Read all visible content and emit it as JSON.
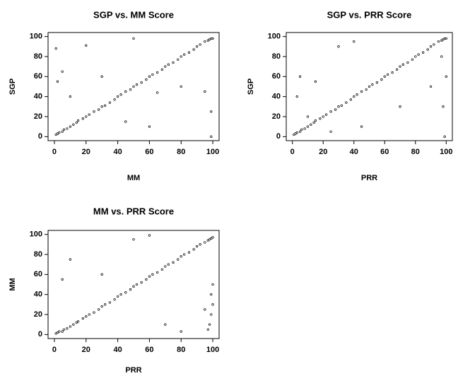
{
  "chart_data": [
    {
      "type": "scatter",
      "title": "SGP vs. MM Score",
      "xlabel": "MM",
      "ylabel": "SGP",
      "x": [
        1,
        2,
        3,
        5,
        6,
        8,
        10,
        12,
        14,
        15,
        18,
        20,
        22,
        25,
        28,
        30,
        32,
        35,
        38,
        40,
        42,
        45,
        48,
        50,
        52,
        55,
        58,
        60,
        62,
        65,
        68,
        70,
        72,
        75,
        78,
        80,
        82,
        85,
        88,
        90,
        92,
        95,
        97,
        98,
        99,
        100,
        1,
        2,
        20,
        50,
        65,
        80,
        99,
        99,
        30,
        45,
        10,
        5,
        95,
        60
      ],
      "values": [
        2,
        3,
        4,
        5,
        7,
        8,
        10,
        12,
        14,
        16,
        18,
        20,
        22,
        25,
        27,
        30,
        31,
        34,
        37,
        40,
        42,
        45,
        47,
        50,
        52,
        54,
        57,
        60,
        62,
        64,
        67,
        70,
        72,
        74,
        77,
        80,
        82,
        84,
        87,
        90,
        92,
        95,
        96,
        97,
        98,
        98,
        88,
        55,
        91,
        98,
        44,
        50,
        25,
        0,
        60,
        15,
        40,
        65,
        45,
        10
      ],
      "xlim": [
        -4,
        104
      ],
      "ylim": [
        -4,
        104
      ],
      "xticks": [
        0,
        20,
        40,
        60,
        80,
        100
      ],
      "yticks": [
        0,
        20,
        40,
        60,
        80,
        100
      ],
      "color": "#000000"
    },
    {
      "type": "scatter",
      "title": "SGP vs. PRR Score",
      "xlabel": "PRR",
      "ylabel": "SGP",
      "x": [
        1,
        2,
        3,
        5,
        6,
        8,
        10,
        12,
        14,
        15,
        18,
        20,
        22,
        25,
        28,
        30,
        32,
        35,
        38,
        40,
        42,
        45,
        48,
        50,
        52,
        55,
        58,
        60,
        62,
        65,
        68,
        70,
        72,
        75,
        78,
        80,
        82,
        85,
        88,
        90,
        92,
        95,
        97,
        98,
        99,
        100,
        5,
        10,
        30,
        45,
        90,
        98,
        99,
        100,
        15,
        40,
        70,
        3,
        97,
        25
      ],
      "values": [
        2,
        3,
        4,
        5,
        7,
        8,
        10,
        12,
        14,
        16,
        18,
        20,
        22,
        25,
        27,
        30,
        31,
        34,
        37,
        40,
        42,
        45,
        47,
        50,
        52,
        54,
        57,
        60,
        62,
        64,
        67,
        70,
        72,
        74,
        77,
        80,
        82,
        84,
        87,
        90,
        92,
        95,
        96,
        97,
        98,
        98,
        60,
        20,
        90,
        10,
        50,
        30,
        0,
        60,
        55,
        95,
        30,
        40,
        80,
        5
      ],
      "xlim": [
        -4,
        104
      ],
      "ylim": [
        -4,
        104
      ],
      "xticks": [
        0,
        20,
        40,
        60,
        80,
        100
      ],
      "yticks": [
        0,
        20,
        40,
        60,
        80,
        100
      ],
      "color": "#000000"
    },
    {
      "type": "scatter",
      "title": "MM vs. PRR Score",
      "xlabel": "PRR",
      "ylabel": "MM",
      "x": [
        1,
        2,
        3,
        5,
        6,
        8,
        10,
        12,
        14,
        15,
        18,
        20,
        22,
        25,
        28,
        30,
        32,
        35,
        38,
        40,
        42,
        45,
        48,
        50,
        52,
        55,
        58,
        60,
        62,
        65,
        68,
        70,
        72,
        75,
        78,
        80,
        82,
        85,
        88,
        90,
        92,
        95,
        97,
        98,
        99,
        100,
        99,
        98,
        100,
        97,
        60,
        50,
        80,
        10,
        5,
        99,
        100,
        30,
        70,
        95
      ],
      "values": [
        1,
        2,
        3,
        3,
        5,
        6,
        8,
        10,
        12,
        13,
        16,
        18,
        20,
        22,
        25,
        28,
        30,
        32,
        35,
        38,
        40,
        42,
        45,
        48,
        50,
        52,
        55,
        58,
        60,
        62,
        65,
        68,
        70,
        72,
        75,
        78,
        80,
        82,
        85,
        88,
        90,
        92,
        94,
        95,
        96,
        97,
        20,
        10,
        50,
        5,
        99,
        95,
        3,
        75,
        55,
        40,
        30,
        60,
        10,
        25
      ],
      "xlim": [
        -4,
        104
      ],
      "ylim": [
        -4,
        104
      ],
      "xticks": [
        0,
        20,
        40,
        60,
        80,
        100
      ],
      "yticks": [
        0,
        20,
        40,
        60,
        80,
        100
      ],
      "color": "#000000"
    }
  ]
}
